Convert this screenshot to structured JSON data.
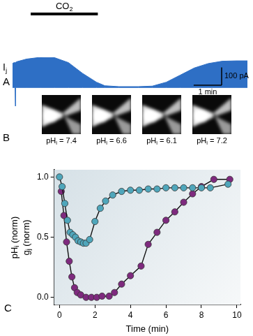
{
  "panel_labels": [
    "A",
    "B",
    "C"
  ],
  "images": {
    "captions": [
      "pHi = 7.4",
      "pHi = 6.6",
      "pHi = 6.1",
      "pHi = 7.2"
    ]
  },
  "chart_data": [
    {
      "type": "area",
      "ylabel": "Ij",
      "tick_labels": false,
      "grid": false,
      "annotations": [
        {
          "text": "CO2",
          "x": [
            0.65,
            3.05
          ]
        }
      ],
      "scale_bars": [
        {
          "axis": "y",
          "value": 100,
          "label": "100 pA"
        },
        {
          "axis": "x",
          "value": 1,
          "label": "1 min"
        }
      ],
      "x": [
        0,
        0.05,
        0.09,
        0.1,
        0.11,
        0.15,
        0.5,
        1.0,
        1.5,
        2.0,
        2.5,
        3.0,
        3.3,
        3.8,
        4.5,
        5.0,
        5.5,
        6.0,
        6.5,
        7.0,
        7.5,
        8.0,
        8.4
      ],
      "series": [
        {
          "color": "#2e6fc5",
          "values": [
            135,
            140,
            140,
            140,
            140,
            145,
            160,
            170,
            168,
            140,
            80,
            30,
            10,
            5,
            5,
            8,
            30,
            70,
            110,
            135,
            148,
            150,
            150
          ]
        },
        {
          "color": "#2e6fc5",
          "values": [
            0,
            0,
            0,
            -105,
            0,
            0,
            0,
            0,
            0,
            0,
            0,
            0,
            0,
            0,
            0,
            0,
            0,
            0,
            0,
            0,
            0,
            0,
            0
          ]
        }
      ]
    },
    {
      "type": "scatter",
      "xlabel": "Time (min)",
      "ylabel": [
        "pHi (norm)",
        "gj (norm)"
      ],
      "grid": false,
      "xlim": [
        -0.3,
        10.2
      ],
      "xticks": [
        0,
        2,
        4,
        6,
        8,
        10
      ],
      "ylim": [
        -0.06,
        1.06
      ],
      "yticks": [
        {
          "value": 0,
          "label": "0.0"
        },
        {
          "value": 0.5,
          "label": "0.5"
        },
        {
          "value": 1,
          "label": "1.0"
        }
      ],
      "series": [
        {
          "color": "#4fa6bb",
          "marker": "circle",
          "line_style": "solid",
          "x": [
            0,
            0.15,
            0.3,
            0.45,
            0.6,
            0.75,
            0.9,
            1.05,
            1.2,
            1.35,
            1.5,
            1.7,
            2.0,
            2.3,
            2.6,
            3.0,
            3.5,
            4.0,
            4.5,
            5.0,
            5.5,
            6.0,
            6.5,
            7.0,
            7.5,
            8.0,
            8.5,
            9.5
          ],
          "values": [
            1.0,
            0.92,
            0.78,
            0.64,
            0.54,
            0.52,
            0.5,
            0.47,
            0.46,
            0.45,
            0.45,
            0.48,
            0.63,
            0.74,
            0.8,
            0.85,
            0.88,
            0.89,
            0.89,
            0.9,
            0.9,
            0.91,
            0.91,
            0.91,
            0.91,
            0.91,
            0.91,
            0.94
          ]
        },
        {
          "color": "#7e2a7e",
          "marker": "circle",
          "line_style": "solid",
          "x": [
            0.1,
            0.25,
            0.4,
            0.55,
            0.7,
            0.85,
            1.0,
            1.2,
            1.5,
            1.8,
            2.1,
            2.4,
            2.8,
            3.1,
            3.5,
            4.0,
            4.6,
            5.0,
            5.5,
            6.0,
            6.5,
            7.0,
            7.5,
            8.0,
            8.7,
            9.6
          ],
          "values": [
            0.88,
            0.68,
            0.46,
            0.3,
            0.17,
            0.08,
            0.04,
            0.02,
            0.0,
            0.0,
            0.0,
            0.01,
            0.01,
            0.04,
            0.11,
            0.18,
            0.26,
            0.44,
            0.54,
            0.64,
            0.71,
            0.79,
            0.86,
            0.92,
            0.98,
            0.98
          ]
        }
      ]
    }
  ]
}
